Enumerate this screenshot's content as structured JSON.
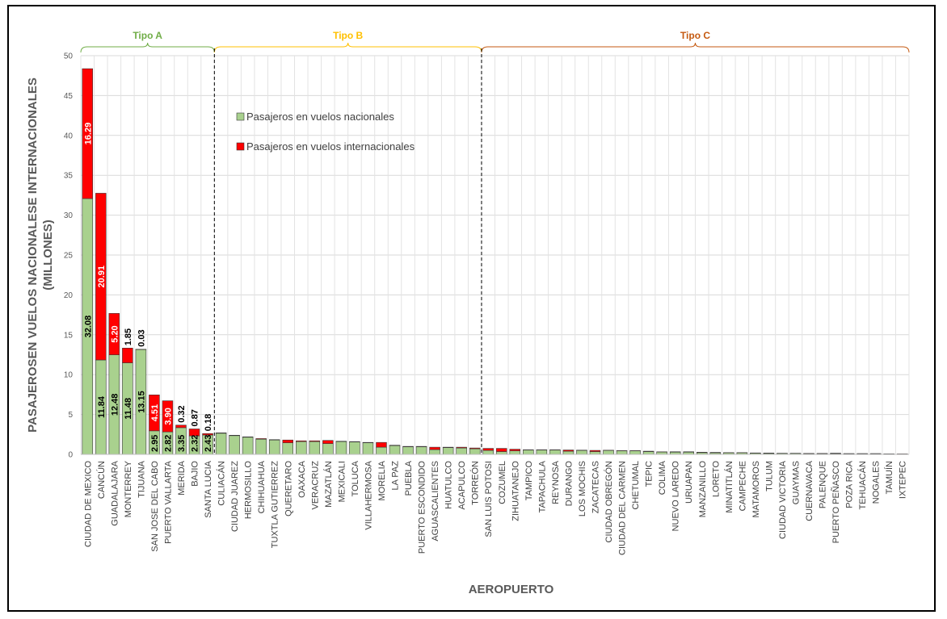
{
  "chart_data": {
    "type": "bar",
    "stacked": true,
    "xlabel": "AEROPUERTO",
    "ylabel_line1": "PASAJEROSEN VUELOS NACIONALESE INTERNACIONALES",
    "ylabel_line2": "(MILLONES)",
    "ylim": [
      0,
      50
    ],
    "yticks": [
      0,
      5,
      10,
      15,
      20,
      25,
      30,
      35,
      40,
      45,
      50
    ],
    "grid": true,
    "legend_position": "top-left inside plot",
    "categories": [
      "CIUDAD DE MEXICO",
      "CANCÚN",
      "GUADALAJARA",
      "MONTERREY",
      "TIJUANA",
      "SAN JOSE DEL CABO",
      "PUERTO VALLARTA",
      "MERIDA",
      "BAJIO",
      "SANTA LUCIA",
      "CULIACÁN",
      "CIUDAD JUAREZ",
      "HERMOSILLO",
      "CHIHUAHUA",
      "TUXTLA GUTIERREZ",
      "QUERETARO",
      "OAXACA",
      "VERACRUZ",
      "MAZATLÁN",
      "MEXICALI",
      "TOLUCA",
      "VILLAHERMOSA",
      "MORELIA",
      "LA PAZ",
      "PUEBLA",
      "PUERTO ESCONDIDO",
      "AGUASCALIENTES",
      "HUATULCO",
      "ACAPULCO",
      "TORREÓN",
      "SAN LUIS POTOSI",
      "COZUMEL",
      "ZIHUATANEJO",
      "TAMPICO",
      "TAPACHULA",
      "REYNOSA",
      "DURANGO",
      "LOS MOCHIS",
      "ZACATECAS",
      "CIUDAD OBREGÓN",
      "CIUDAD DEL CARMEN",
      "CHETUMAL",
      "TEPIC",
      "COLIMA",
      "NUEVO LAREDO",
      "URUAPAN",
      "MANZANILLO",
      "LORETO",
      "MINATITLÁN",
      "CAMPECHE",
      "MATAMOROS",
      "TULUM",
      "CIUDAD VICTORIA",
      "GUAYMAS",
      "CUERNAVACA",
      "PALENQUE",
      "PUERTO PEÑASCO",
      "POZA RICA",
      "TEHUACÁN",
      "NOGALES",
      "TAMUÍN",
      "IXTEPEC"
    ],
    "series": [
      {
        "name": "Pasajeros en vuelos nacionales",
        "color": "#A9D18E",
        "values": [
          32.08,
          11.84,
          12.48,
          11.48,
          13.15,
          2.95,
          2.82,
          3.35,
          2.32,
          2.43,
          2.65,
          2.35,
          2.15,
          1.9,
          1.8,
          1.45,
          1.6,
          1.6,
          1.35,
          1.6,
          1.55,
          1.45,
          0.9,
          1.1,
          0.95,
          0.95,
          0.6,
          0.85,
          0.8,
          0.7,
          0.5,
          0.35,
          0.45,
          0.55,
          0.55,
          0.55,
          0.4,
          0.5,
          0.35,
          0.5,
          0.45,
          0.45,
          0.35,
          0.3,
          0.28,
          0.28,
          0.22,
          0.2,
          0.2,
          0.2,
          0.15,
          0.12,
          0.12,
          0.12,
          0.1,
          0.1,
          0.1,
          0.08,
          0.08,
          0.08,
          0.06,
          0.05
        ]
      },
      {
        "name": "Pasajeros en vuelos internacionales",
        "color": "#FF0000",
        "values": [
          16.29,
          20.91,
          5.2,
          1.85,
          0.03,
          4.51,
          3.9,
          0.32,
          0.87,
          0.18,
          0.05,
          0.05,
          0.05,
          0.08,
          0.05,
          0.35,
          0.1,
          0.1,
          0.4,
          0.05,
          0.05,
          0.05,
          0.6,
          0.05,
          0.05,
          0.05,
          0.3,
          0.05,
          0.1,
          0.1,
          0.25,
          0.4,
          0.2,
          0.03,
          0.03,
          0.03,
          0.15,
          0.03,
          0.15,
          0.02,
          0.02,
          0.02,
          0.05,
          0.02,
          0.05,
          0.05,
          0.05,
          0.05,
          0.02,
          0.02,
          0.03,
          0.05,
          0.02,
          0.02,
          0.02,
          0.02,
          0.05,
          0.02,
          0.02,
          0.02,
          0.01,
          0.01
        ]
      }
    ],
    "data_labels": [
      {
        "index": 0,
        "series": 0,
        "text": "32.08"
      },
      {
        "index": 0,
        "series": 1,
        "text": "16.29"
      },
      {
        "index": 1,
        "series": 0,
        "text": "11.84"
      },
      {
        "index": 1,
        "series": 1,
        "text": "20.91"
      },
      {
        "index": 2,
        "series": 0,
        "text": "12.48"
      },
      {
        "index": 2,
        "series": 1,
        "text": "5.20"
      },
      {
        "index": 3,
        "series": 0,
        "text": "11.48"
      },
      {
        "index": 3,
        "series": 1,
        "text": "1.85"
      },
      {
        "index": 4,
        "series": 0,
        "text": "13.15"
      },
      {
        "index": 4,
        "series": 1,
        "text": "0.03"
      },
      {
        "index": 5,
        "series": 0,
        "text": "2.95"
      },
      {
        "index": 5,
        "series": 1,
        "text": "4.51"
      },
      {
        "index": 6,
        "series": 0,
        "text": "2.82"
      },
      {
        "index": 6,
        "series": 1,
        "text": "3.90"
      },
      {
        "index": 7,
        "series": 0,
        "text": "3.35"
      },
      {
        "index": 7,
        "series": 1,
        "text": "0.32"
      },
      {
        "index": 8,
        "series": 0,
        "text": "2.32"
      },
      {
        "index": 8,
        "series": 1,
        "text": "0.87"
      },
      {
        "index": 9,
        "series": 0,
        "text": "2.43"
      },
      {
        "index": 9,
        "series": 1,
        "text": "0.18"
      }
    ],
    "groups": [
      {
        "name": "Tipo A",
        "start": 0,
        "end": 9,
        "color": "#70AD47"
      },
      {
        "name": "Tipo B",
        "start": 10,
        "end": 29,
        "color": "#FFC000"
      },
      {
        "name": "Tipo C",
        "start": 30,
        "end": 61,
        "color": "#C55A11"
      }
    ]
  }
}
